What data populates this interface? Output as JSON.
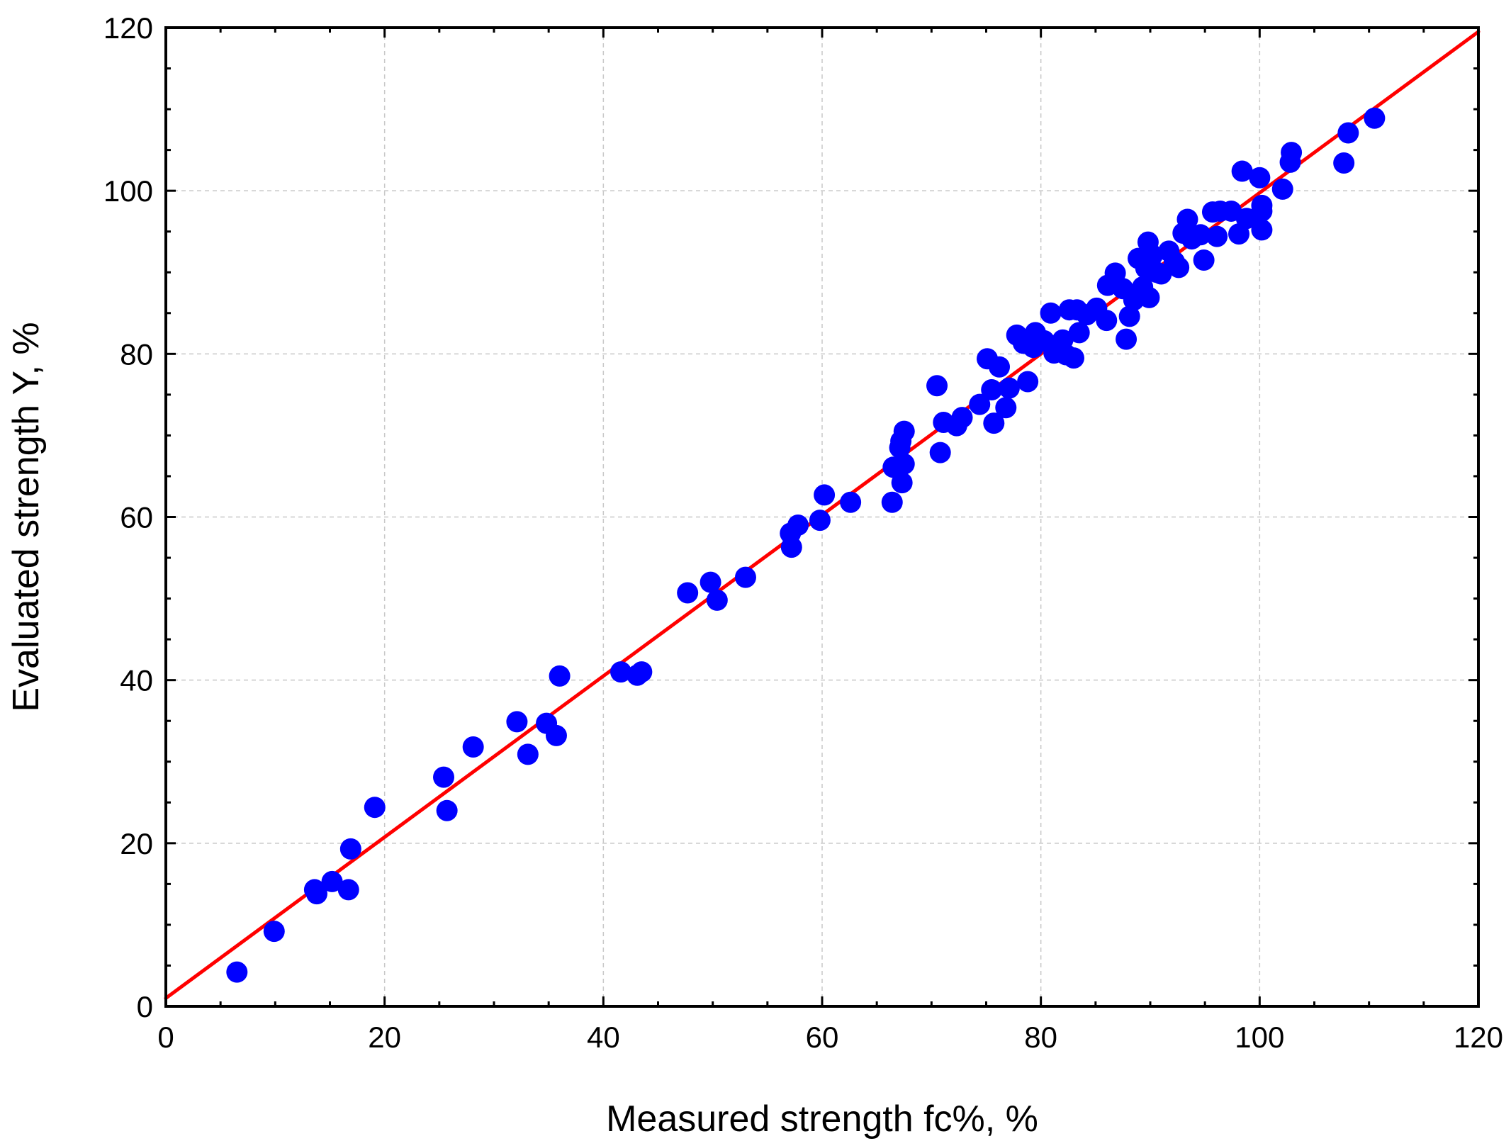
{
  "chart_data": {
    "type": "scatter",
    "title": "",
    "xlabel": "Measured strength fc%, %",
    "ylabel": "Evaluated strength Y, %",
    "xlim": [
      0,
      120
    ],
    "ylim": [
      0,
      120
    ],
    "xticks": [
      "0",
      "20",
      "40",
      "60",
      "80",
      "100",
      "120"
    ],
    "yticks": [
      "0",
      "20",
      "40",
      "60",
      "80",
      "100",
      "120"
    ],
    "grid": true,
    "colors": {
      "points": "#0000ff",
      "fit_line": "#ff0000",
      "grid": "#c8c8c8",
      "axes": "#000000"
    },
    "fit_line": {
      "x": [
        0,
        120
      ],
      "y": [
        1,
        119.5
      ]
    },
    "series": [
      {
        "name": "samples",
        "points": [
          [
            6.5,
            4.2
          ],
          [
            9.9,
            9.2
          ],
          [
            13.6,
            14.3
          ],
          [
            13.8,
            13.8
          ],
          [
            15.2,
            15.3
          ],
          [
            16.7,
            14.3
          ],
          [
            16.9,
            19.3
          ],
          [
            19.1,
            24.4
          ],
          [
            25.4,
            28.1
          ],
          [
            25.7,
            24.0
          ],
          [
            28.1,
            31.8
          ],
          [
            32.1,
            34.9
          ],
          [
            33.1,
            30.9
          ],
          [
            34.8,
            34.7
          ],
          [
            35.7,
            33.2
          ],
          [
            36.0,
            40.5
          ],
          [
            41.6,
            41.0
          ],
          [
            43.1,
            40.6
          ],
          [
            43.5,
            41.0
          ],
          [
            47.7,
            50.7
          ],
          [
            49.8,
            52.0
          ],
          [
            50.4,
            49.8
          ],
          [
            53.0,
            52.6
          ],
          [
            57.1,
            58.0
          ],
          [
            57.2,
            56.3
          ],
          [
            57.8,
            59.0
          ],
          [
            59.8,
            59.6
          ],
          [
            60.2,
            62.7
          ],
          [
            62.6,
            61.8
          ],
          [
            66.4,
            61.8
          ],
          [
            66.5,
            66.1
          ],
          [
            67.1,
            68.5
          ],
          [
            67.2,
            69.3
          ],
          [
            67.5,
            70.5
          ],
          [
            67.5,
            66.5
          ],
          [
            67.3,
            64.2
          ],
          [
            70.5,
            76.1
          ],
          [
            70.8,
            67.9
          ],
          [
            71.1,
            71.6
          ],
          [
            72.3,
            71.2
          ],
          [
            72.8,
            72.2
          ],
          [
            74.4,
            73.8
          ],
          [
            75.1,
            79.4
          ],
          [
            75.5,
            75.6
          ],
          [
            75.7,
            71.5
          ],
          [
            76.2,
            78.4
          ],
          [
            76.8,
            73.4
          ],
          [
            77.1,
            75.8
          ],
          [
            77.8,
            82.3
          ],
          [
            78.4,
            81.3
          ],
          [
            78.8,
            76.6
          ],
          [
            79.3,
            80.8
          ],
          [
            79.5,
            82.6
          ],
          [
            80.3,
            81.6
          ],
          [
            80.9,
            85.0
          ],
          [
            81.2,
            80.1
          ],
          [
            82.0,
            81.7
          ],
          [
            82.3,
            79.9
          ],
          [
            82.6,
            85.4
          ],
          [
            83.0,
            79.5
          ],
          [
            83.3,
            85.4
          ],
          [
            83.5,
            82.6
          ],
          [
            84.2,
            84.8
          ],
          [
            85.1,
            85.6
          ],
          [
            86.0,
            84.1
          ],
          [
            86.1,
            88.4
          ],
          [
            86.8,
            89.9
          ],
          [
            87.5,
            88.0
          ],
          [
            87.8,
            81.8
          ],
          [
            88.1,
            84.6
          ],
          [
            88.5,
            86.6
          ],
          [
            88.9,
            91.7
          ],
          [
            89.3,
            88.2
          ],
          [
            89.6,
            90.5
          ],
          [
            89.8,
            93.7
          ],
          [
            89.9,
            86.9
          ],
          [
            90.2,
            92.1
          ],
          [
            90.6,
            90.0
          ],
          [
            91.0,
            89.8
          ],
          [
            91.7,
            92.6
          ],
          [
            92.2,
            91.3
          ],
          [
            92.6,
            90.6
          ],
          [
            93.0,
            94.8
          ],
          [
            93.4,
            96.5
          ],
          [
            93.8,
            94.1
          ],
          [
            94.6,
            94.6
          ],
          [
            94.9,
            91.5
          ],
          [
            95.7,
            97.4
          ],
          [
            96.1,
            94.4
          ],
          [
            96.4,
            97.5
          ],
          [
            97.4,
            97.5
          ],
          [
            98.1,
            94.7
          ],
          [
            98.4,
            102.4
          ],
          [
            98.8,
            96.6
          ],
          [
            100.0,
            101.6
          ],
          [
            100.2,
            98.2
          ],
          [
            100.2,
            97.5
          ],
          [
            100.2,
            95.2
          ],
          [
            102.1,
            100.2
          ],
          [
            102.8,
            103.5
          ],
          [
            102.9,
            104.7
          ],
          [
            107.7,
            103.4
          ],
          [
            108.1,
            107.1
          ],
          [
            110.5,
            108.9
          ]
        ]
      }
    ]
  }
}
